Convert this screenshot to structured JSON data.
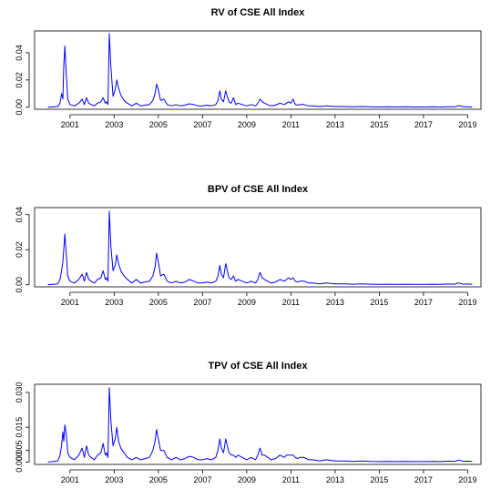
{
  "chart_data": [
    {
      "type": "line",
      "title": "RV of CSE All  Index",
      "x_ticks": [
        2001,
        2003,
        2005,
        2007,
        2009,
        2011,
        2013,
        2015,
        2017,
        2019
      ],
      "y_ticks": [
        0.0,
        0.02,
        0.04
      ],
      "y_tick_labels": [
        "0.00",
        "0.02",
        "0.04"
      ],
      "xlim": [
        1999.4,
        2019.6
      ],
      "ylim": [
        -0.0015,
        0.056
      ],
      "color": "#0000ff",
      "x": [
        2000.0,
        2000.45,
        2000.55,
        2000.62,
        2000.68,
        2000.72,
        2000.77,
        2000.83,
        2000.9,
        2001.0,
        2001.2,
        2001.4,
        2001.55,
        2001.65,
        2001.75,
        2001.85,
        2001.95,
        2002.1,
        2002.25,
        2002.4,
        2002.5,
        2002.6,
        2002.65,
        2002.72,
        2002.78,
        2002.85,
        2002.95,
        2003.05,
        2003.12,
        2003.2,
        2003.3,
        2003.45,
        2003.6,
        2003.8,
        2004.0,
        2004.2,
        2004.4,
        2004.6,
        2004.75,
        2004.85,
        2004.92,
        2005.0,
        2005.1,
        2005.25,
        2005.4,
        2005.6,
        2005.8,
        2006.0,
        2006.2,
        2006.4,
        2006.6,
        2006.8,
        2007.0,
        2007.2,
        2007.4,
        2007.6,
        2007.7,
        2007.78,
        2007.85,
        2007.95,
        2008.05,
        2008.12,
        2008.2,
        2008.3,
        2008.4,
        2008.5,
        2008.6,
        2008.8,
        2009.0,
        2009.2,
        2009.4,
        2009.5,
        2009.6,
        2009.7,
        2009.8,
        2009.95,
        2010.1,
        2010.3,
        2010.5,
        2010.7,
        2010.8,
        2010.9,
        2011.0,
        2011.1,
        2011.2,
        2011.3,
        2011.4,
        2011.6,
        2011.8,
        2012.0,
        2012.3,
        2012.6,
        2013.0,
        2013.4,
        2013.8,
        2014.2,
        2014.6,
        2015.0,
        2015.4,
        2015.8,
        2016.2,
        2016.6,
        2017.0,
        2017.4,
        2017.8,
        2018.1,
        2018.4,
        2018.6,
        2018.8,
        2019.0,
        2019.2
      ],
      "y": [
        0.0,
        0.0005,
        0.003,
        0.01,
        0.006,
        0.03,
        0.045,
        0.025,
        0.006,
        0.002,
        0.001,
        0.003,
        0.006,
        0.002,
        0.007,
        0.003,
        0.002,
        0.001,
        0.003,
        0.004,
        0.007,
        0.003,
        0.004,
        0.002,
        0.054,
        0.03,
        0.008,
        0.013,
        0.02,
        0.014,
        0.009,
        0.005,
        0.003,
        0.001,
        0.003,
        0.001,
        0.0015,
        0.002,
        0.005,
        0.01,
        0.017,
        0.013,
        0.005,
        0.006,
        0.002,
        0.001,
        0.002,
        0.001,
        0.0015,
        0.0025,
        0.002,
        0.001,
        0.001,
        0.0015,
        0.001,
        0.002,
        0.005,
        0.012,
        0.006,
        0.004,
        0.012,
        0.008,
        0.004,
        0.003,
        0.007,
        0.002,
        0.003,
        0.002,
        0.001,
        0.002,
        0.001,
        0.003,
        0.006,
        0.004,
        0.003,
        0.002,
        0.001,
        0.0015,
        0.003,
        0.002,
        0.003,
        0.004,
        0.003,
        0.006,
        0.002,
        0.0015,
        0.002,
        0.002,
        0.001,
        0.001,
        0.0005,
        0.001,
        0.0005,
        0.0005,
        0.0003,
        0.0005,
        0.0003,
        0.0002,
        0.0003,
        0.0002,
        0.0003,
        0.0002,
        0.0002,
        0.0003,
        0.0002,
        0.0004,
        0.0003,
        0.0012,
        0.0003,
        0.0004,
        0.0002
      ]
    },
    {
      "type": "line",
      "title": "BPV of CSE All Index",
      "x_ticks": [
        2001,
        2003,
        2005,
        2007,
        2009,
        2011,
        2013,
        2015,
        2017,
        2019
      ],
      "y_ticks": [
        0.0,
        0.02,
        0.04
      ],
      "y_tick_labels": [
        "0.00",
        "0.02",
        "0.04"
      ],
      "xlim": [
        1999.4,
        2019.6
      ],
      "ylim": [
        -0.0012,
        0.044
      ],
      "color": "#0000ff",
      "x": [
        2000.0,
        2000.45,
        2000.55,
        2000.62,
        2000.68,
        2000.72,
        2000.77,
        2000.83,
        2000.9,
        2001.0,
        2001.2,
        2001.4,
        2001.55,
        2001.65,
        2001.75,
        2001.85,
        2001.95,
        2002.1,
        2002.25,
        2002.4,
        2002.5,
        2002.6,
        2002.65,
        2002.72,
        2002.78,
        2002.85,
        2002.95,
        2003.05,
        2003.12,
        2003.2,
        2003.3,
        2003.45,
        2003.6,
        2003.8,
        2004.0,
        2004.2,
        2004.4,
        2004.6,
        2004.75,
        2004.85,
        2004.92,
        2005.0,
        2005.1,
        2005.25,
        2005.4,
        2005.6,
        2005.8,
        2006.0,
        2006.2,
        2006.4,
        2006.6,
        2006.8,
        2007.0,
        2007.2,
        2007.4,
        2007.6,
        2007.7,
        2007.78,
        2007.85,
        2007.95,
        2008.05,
        2008.12,
        2008.2,
        2008.3,
        2008.4,
        2008.5,
        2008.6,
        2008.8,
        2009.0,
        2009.2,
        2009.4,
        2009.5,
        2009.6,
        2009.7,
        2009.8,
        2009.95,
        2010.1,
        2010.3,
        2010.5,
        2010.7,
        2010.8,
        2010.9,
        2011.0,
        2011.1,
        2011.2,
        2011.3,
        2011.4,
        2011.6,
        2011.8,
        2012.0,
        2012.3,
        2012.6,
        2013.0,
        2013.4,
        2013.8,
        2014.2,
        2014.6,
        2015.0,
        2015.4,
        2015.8,
        2016.2,
        2016.6,
        2017.0,
        2017.4,
        2017.8,
        2018.1,
        2018.4,
        2018.6,
        2018.8,
        2019.0,
        2019.2
      ],
      "y": [
        0.0,
        0.0005,
        0.003,
        0.008,
        0.013,
        0.02,
        0.029,
        0.018,
        0.005,
        0.002,
        0.001,
        0.003,
        0.006,
        0.002,
        0.007,
        0.003,
        0.002,
        0.001,
        0.003,
        0.004,
        0.008,
        0.003,
        0.004,
        0.002,
        0.042,
        0.022,
        0.008,
        0.011,
        0.017,
        0.012,
        0.008,
        0.005,
        0.003,
        0.001,
        0.003,
        0.001,
        0.0015,
        0.002,
        0.005,
        0.01,
        0.018,
        0.013,
        0.005,
        0.006,
        0.002,
        0.001,
        0.002,
        0.001,
        0.0015,
        0.003,
        0.002,
        0.001,
        0.001,
        0.0015,
        0.001,
        0.002,
        0.005,
        0.011,
        0.006,
        0.004,
        0.012,
        0.008,
        0.004,
        0.003,
        0.005,
        0.002,
        0.003,
        0.002,
        0.001,
        0.002,
        0.001,
        0.003,
        0.007,
        0.004,
        0.003,
        0.002,
        0.001,
        0.0015,
        0.003,
        0.002,
        0.003,
        0.004,
        0.003,
        0.004,
        0.002,
        0.0015,
        0.002,
        0.002,
        0.001,
        0.001,
        0.0005,
        0.001,
        0.0005,
        0.0005,
        0.0003,
        0.0005,
        0.0003,
        0.0002,
        0.0003,
        0.0002,
        0.0003,
        0.0002,
        0.0002,
        0.0003,
        0.0002,
        0.0004,
        0.0003,
        0.001,
        0.0003,
        0.0004,
        0.0002
      ]
    },
    {
      "type": "line",
      "title": "TPV of CSE All Index",
      "x_ticks": [
        2001,
        2003,
        2005,
        2007,
        2009,
        2011,
        2013,
        2015,
        2017,
        2019
      ],
      "y_ticks": [
        0.0,
        0.005,
        0.015,
        0.03
      ],
      "y_tick_labels": [
        "0.000",
        "0.005",
        "0.015",
        "0.030"
      ],
      "xlim": [
        1999.4,
        2019.6
      ],
      "ylim": [
        -0.001,
        0.0335
      ],
      "color": "#0000ff",
      "x": [
        2000.0,
        2000.45,
        2000.55,
        2000.62,
        2000.68,
        2000.72,
        2000.77,
        2000.83,
        2000.9,
        2001.0,
        2001.2,
        2001.4,
        2001.55,
        2001.65,
        2001.75,
        2001.85,
        2001.95,
        2002.1,
        2002.25,
        2002.4,
        2002.5,
        2002.6,
        2002.65,
        2002.72,
        2002.78,
        2002.85,
        2002.95,
        2003.05,
        2003.12,
        2003.2,
        2003.3,
        2003.45,
        2003.6,
        2003.8,
        2004.0,
        2004.2,
        2004.4,
        2004.6,
        2004.75,
        2004.85,
        2004.92,
        2005.0,
        2005.1,
        2005.25,
        2005.4,
        2005.6,
        2005.8,
        2006.0,
        2006.2,
        2006.4,
        2006.6,
        2006.8,
        2007.0,
        2007.2,
        2007.4,
        2007.6,
        2007.7,
        2007.78,
        2007.85,
        2007.95,
        2008.05,
        2008.12,
        2008.2,
        2008.3,
        2008.4,
        2008.5,
        2008.6,
        2008.8,
        2009.0,
        2009.2,
        2009.4,
        2009.5,
        2009.6,
        2009.7,
        2009.8,
        2009.95,
        2010.1,
        2010.3,
        2010.5,
        2010.7,
        2010.8,
        2010.9,
        2011.0,
        2011.1,
        2011.2,
        2011.3,
        2011.4,
        2011.6,
        2011.8,
        2012.0,
        2012.3,
        2012.6,
        2013.0,
        2013.4,
        2013.8,
        2014.2,
        2014.6,
        2015.0,
        2015.4,
        2015.8,
        2016.2,
        2016.6,
        2017.0,
        2017.4,
        2017.8,
        2018.1,
        2018.4,
        2018.6,
        2018.8,
        2019.0,
        2019.2
      ],
      "y": [
        0.0,
        0.0005,
        0.003,
        0.007,
        0.013,
        0.009,
        0.016,
        0.012,
        0.004,
        0.002,
        0.001,
        0.003,
        0.006,
        0.002,
        0.007,
        0.003,
        0.002,
        0.001,
        0.003,
        0.004,
        0.008,
        0.003,
        0.004,
        0.002,
        0.032,
        0.018,
        0.007,
        0.01,
        0.015,
        0.009,
        0.006,
        0.004,
        0.002,
        0.001,
        0.002,
        0.001,
        0.0015,
        0.002,
        0.005,
        0.009,
        0.014,
        0.01,
        0.005,
        0.005,
        0.002,
        0.001,
        0.002,
        0.001,
        0.0015,
        0.0025,
        0.002,
        0.001,
        0.001,
        0.0015,
        0.001,
        0.002,
        0.005,
        0.01,
        0.006,
        0.004,
        0.01,
        0.007,
        0.004,
        0.003,
        0.003,
        0.002,
        0.003,
        0.002,
        0.001,
        0.002,
        0.001,
        0.003,
        0.006,
        0.003,
        0.003,
        0.002,
        0.001,
        0.0015,
        0.003,
        0.002,
        0.003,
        0.003,
        0.003,
        0.003,
        0.002,
        0.0015,
        0.002,
        0.002,
        0.001,
        0.001,
        0.0005,
        0.001,
        0.0005,
        0.0005,
        0.0003,
        0.0005,
        0.0003,
        0.0002,
        0.0003,
        0.0002,
        0.0003,
        0.0002,
        0.0002,
        0.0003,
        0.0002,
        0.0004,
        0.0003,
        0.0009,
        0.0003,
        0.0004,
        0.0002
      ]
    }
  ]
}
